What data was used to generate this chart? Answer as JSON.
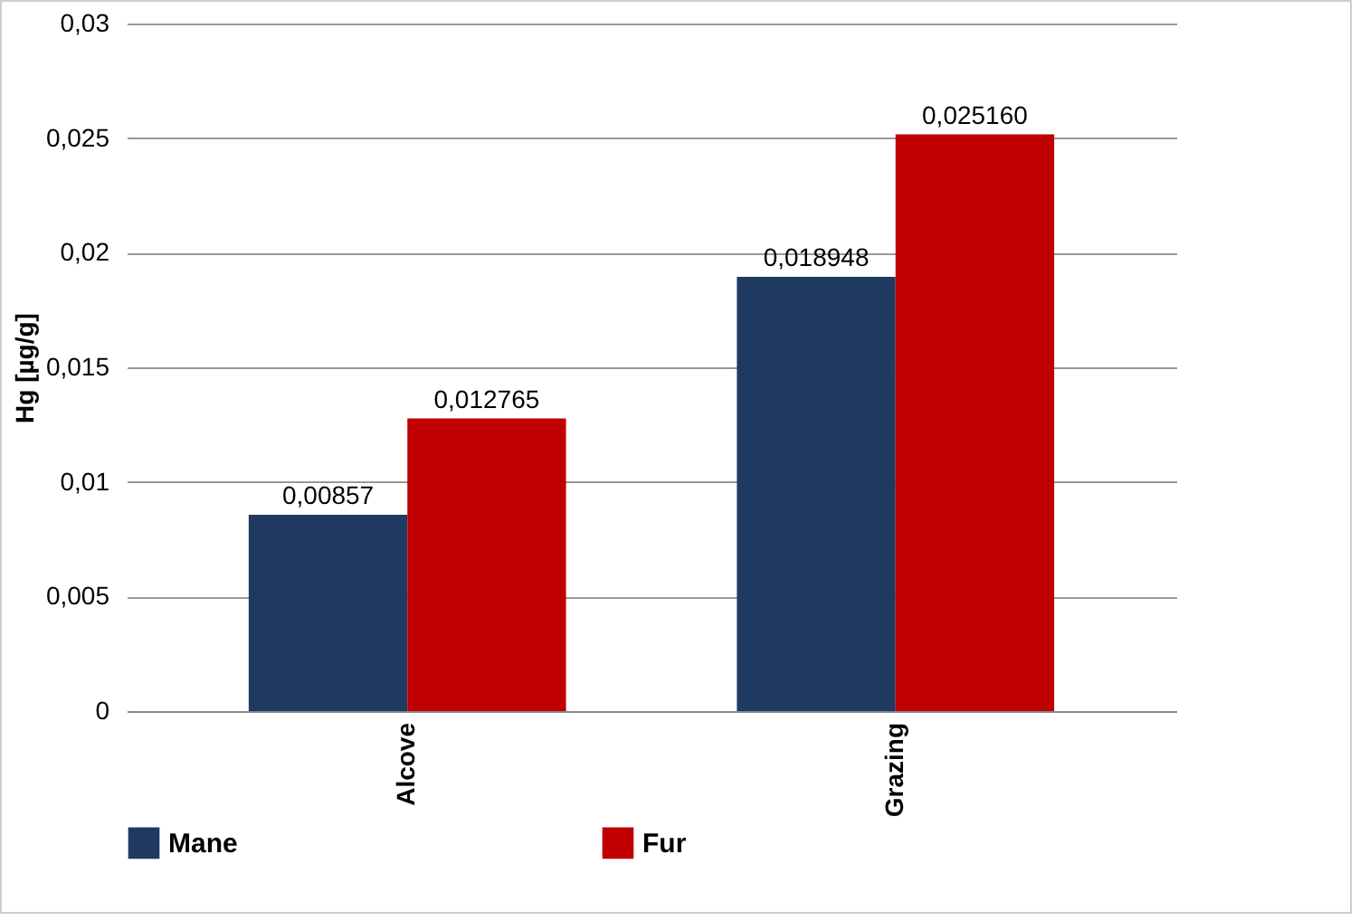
{
  "chart_data": {
    "type": "bar",
    "ylabel": "Hg [µg/g]",
    "categories": [
      "Alcove",
      "Grazing"
    ],
    "series": [
      {
        "name": "Mane",
        "color": "#1f3a60",
        "values": [
          0.00857,
          0.018948
        ],
        "value_labels": [
          "0,00857",
          "0,018948"
        ]
      },
      {
        "name": "Fur",
        "color": "#c00000",
        "values": [
          0.012765,
          0.02516
        ],
        "value_labels": [
          "0,012765",
          "0,025160"
        ]
      }
    ],
    "ylim": [
      0,
      0.03
    ],
    "yticks": [
      {
        "value": 0,
        "label": "0"
      },
      {
        "value": 0.005,
        "label": "0,005"
      },
      {
        "value": 0.01,
        "label": "0,01"
      },
      {
        "value": 0.015,
        "label": "0,015"
      },
      {
        "value": 0.02,
        "label": "0,02"
      },
      {
        "value": 0.025,
        "label": "0,025"
      },
      {
        "value": 0.03,
        "label": "0,03"
      }
    ],
    "grid": "y",
    "legend": "bottom"
  }
}
